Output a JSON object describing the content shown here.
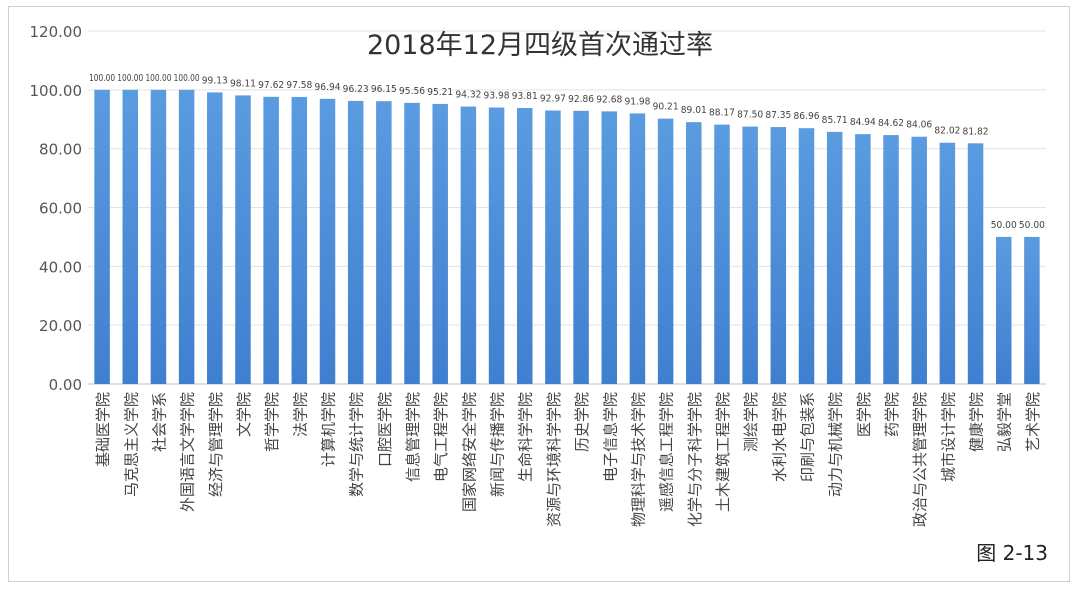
{
  "chart_data": {
    "type": "bar",
    "title": "2018年12月四级首次通过率",
    "figure_label": "图 2-13",
    "ylim": [
      0,
      120
    ],
    "yticks": [
      "0.00",
      "20.00",
      "40.00",
      "60.00",
      "80.00",
      "100.00",
      "120.00"
    ],
    "grid": true,
    "bar_color": "#4a8fdc",
    "categories": [
      "基础医学院",
      "马克思主义学院",
      "社会学系",
      "外国语言文学学院",
      "经济与管理学院",
      "文学院",
      "哲学学院",
      "法学院",
      "计算机学院",
      "数学与统计学院",
      "口腔医学院",
      "信息管理学院",
      "电气工程学院",
      "国家网络安全学院",
      "新闻与传播学院",
      "生命科学学院",
      "资源与环境科学学院",
      "历史学院",
      "电子信息学院",
      "物理科学与技术学院",
      "遥感信息工程学院",
      "化学与分子科学学院",
      "土木建筑工程学院",
      "测绘学院",
      "水利水电学院",
      "印刷与包装系",
      "动力与机械学院",
      "医学院",
      "药学院",
      "政治与公共管理学院",
      "城市设计学院",
      "健康学院",
      "弘毅学堂",
      "艺术学院"
    ],
    "values": [
      100.0,
      100.0,
      100.0,
      100.0,
      99.13,
      98.11,
      97.62,
      97.58,
      96.94,
      96.23,
      96.15,
      95.56,
      95.21,
      94.32,
      93.98,
      93.81,
      92.97,
      92.86,
      92.68,
      91.98,
      90.21,
      89.01,
      88.17,
      87.5,
      87.35,
      86.96,
      85.71,
      84.94,
      84.62,
      84.06,
      82.02,
      81.82,
      50.0,
      50.0
    ],
    "value_labels": [
      "100.00",
      "100.00",
      "100.00",
      "100.00",
      "99.13",
      "98.11",
      "97.62",
      "97.58",
      "96.94",
      "96.23",
      "96.15",
      "95.56",
      "95.21",
      "94.32",
      "93.98",
      "93.81",
      "92.97",
      "92.86",
      "92.68",
      "91.98",
      "90.21",
      "89.01",
      "88.17",
      "87.50",
      "87.35",
      "86.96",
      "85.71",
      "84.94",
      "84.62",
      "84.06",
      "82.02",
      "81.82",
      "50.00",
      "50.00"
    ]
  }
}
